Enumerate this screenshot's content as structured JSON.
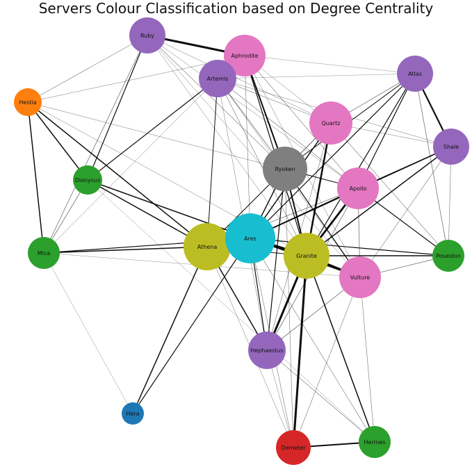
{
  "title": "Servers Colour Classification based on Degree Centrality",
  "colors": {
    "purple": "#9467bd",
    "orange": "#ff7f0e",
    "green": "#2ca02c",
    "pink": "#e377c2",
    "gray": "#7f7f7f",
    "olive": "#bcbd22",
    "cyan": "#17becf",
    "blue": "#1f77b4",
    "red": "#d62728"
  },
  "nodes": [
    {
      "id": "ruby",
      "label": "Ruby",
      "color": "#9467bd"
    },
    {
      "id": "aphrodite",
      "label": "Aphrodite",
      "color": "#e377c2"
    },
    {
      "id": "artemis",
      "label": "Artemis",
      "color": "#9467bd"
    },
    {
      "id": "atlas",
      "label": "Atlas",
      "color": "#9467bd"
    },
    {
      "id": "hestia",
      "label": "Hestia",
      "color": "#ff7f0e"
    },
    {
      "id": "quartz",
      "label": "Quartz",
      "color": "#e377c2"
    },
    {
      "id": "shale",
      "label": "Shale",
      "color": "#9467bd"
    },
    {
      "id": "ryoken",
      "label": "Ryoken",
      "color": "#7f7f7f"
    },
    {
      "id": "dionysus",
      "label": "Dionysus",
      "color": "#2ca02c"
    },
    {
      "id": "apollo",
      "label": "Apollo",
      "color": "#e377c2"
    },
    {
      "id": "mica",
      "label": "Mica",
      "color": "#2ca02c"
    },
    {
      "id": "athena",
      "label": "Athena",
      "color": "#bcbd22"
    },
    {
      "id": "ares",
      "label": "Ares",
      "color": "#17becf"
    },
    {
      "id": "granite",
      "label": "Granite",
      "color": "#bcbd22"
    },
    {
      "id": "poseidon",
      "label": "Poseidon",
      "color": "#2ca02c"
    },
    {
      "id": "vulture",
      "label": "Vulture",
      "color": "#e377c2"
    },
    {
      "id": "hephaestus",
      "label": "Hephaestus",
      "color": "#9467bd"
    },
    {
      "id": "hera",
      "label": "Hera",
      "color": "#1f77b4"
    },
    {
      "id": "demeter",
      "label": "Demeter",
      "color": "#d62728"
    },
    {
      "id": "hermes",
      "label": "Hermes",
      "color": "#2ca02c"
    }
  ],
  "edges": [
    [
      "ruby",
      "aphrodite",
      3
    ],
    [
      "ruby",
      "hestia",
      0.6
    ],
    [
      "ruby",
      "dionysus",
      1.2
    ],
    [
      "ruby",
      "mica",
      0.8
    ],
    [
      "ruby",
      "ryoken",
      0.6
    ],
    [
      "ruby",
      "quartz",
      0.5
    ],
    [
      "ruby",
      "apollo",
      0.5
    ],
    [
      "ruby",
      "vulture",
      0.5
    ],
    [
      "ruby",
      "granite",
      0.5
    ],
    [
      "aphrodite",
      "ryoken",
      2
    ],
    [
      "aphrodite",
      "granite",
      1.2
    ],
    [
      "aphrodite",
      "apollo",
      0.6
    ],
    [
      "aphrodite",
      "vulture",
      0.5
    ],
    [
      "aphrodite",
      "quartz",
      0.5
    ],
    [
      "aphrodite",
      "hestia",
      0.5
    ],
    [
      "aphrodite",
      "atlas",
      0.4
    ],
    [
      "aphrodite",
      "ares",
      0.6
    ],
    [
      "artemis",
      "dionysus",
      1.2
    ],
    [
      "artemis",
      "ryoken",
      0.8
    ],
    [
      "artemis",
      "quartz",
      0.6
    ],
    [
      "artemis",
      "apollo",
      0.6
    ],
    [
      "artemis",
      "shale",
      0.5
    ],
    [
      "artemis",
      "athena",
      1
    ],
    [
      "artemis",
      "granite",
      0.6
    ],
    [
      "artemis",
      "vulture",
      0.5
    ],
    [
      "artemis",
      "mica",
      0.5
    ],
    [
      "artemis",
      "hephaestus",
      0.5
    ],
    [
      "atlas",
      "shale",
      2.2
    ],
    [
      "atlas",
      "quartz",
      0.8
    ],
    [
      "atlas",
      "ryoken",
      1
    ],
    [
      "atlas",
      "apollo",
      1.2
    ],
    [
      "atlas",
      "ares",
      1.2
    ],
    [
      "atlas",
      "granite",
      1.2
    ],
    [
      "atlas",
      "poseidon",
      0.8
    ],
    [
      "atlas",
      "artemis",
      0.4
    ],
    [
      "hestia",
      "dionysus",
      1.5
    ],
    [
      "hestia",
      "mica",
      1.5
    ],
    [
      "hestia",
      "athena",
      1.5
    ],
    [
      "hestia",
      "granite",
      0.5
    ],
    [
      "hestia",
      "apollo",
      0.5
    ],
    [
      "quartz",
      "ryoken",
      0.8
    ],
    [
      "quartz",
      "granite",
      2.5
    ],
    [
      "quartz",
      "ares",
      1.5
    ],
    [
      "quartz",
      "hephaestus",
      0.6
    ],
    [
      "quartz",
      "poseidon",
      0.6
    ],
    [
      "quartz",
      "shale",
      0.5
    ],
    [
      "quartz",
      "athena",
      0.6
    ],
    [
      "shale",
      "apollo",
      1
    ],
    [
      "shale",
      "granite",
      1.5
    ],
    [
      "shale",
      "poseidon",
      0.6
    ],
    [
      "shale",
      "ares",
      1.5
    ],
    [
      "shale",
      "vulture",
      0.6
    ],
    [
      "ryoken",
      "apollo",
      1
    ],
    [
      "ryoken",
      "granite",
      2
    ],
    [
      "ryoken",
      "ares",
      1.5
    ],
    [
      "ryoken",
      "athena",
      1
    ],
    [
      "ryoken",
      "hephaestus",
      1.2
    ],
    [
      "ryoken",
      "vulture",
      1.2
    ],
    [
      "ryoken",
      "demeter",
      0.6
    ],
    [
      "dionysus",
      "athena",
      1.5
    ],
    [
      "dionysus",
      "mica",
      0.8
    ],
    [
      "dionysus",
      "ares",
      1.5
    ],
    [
      "dionysus",
      "hermes",
      0.4
    ],
    [
      "apollo",
      "granite",
      2.8
    ],
    [
      "apollo",
      "ares",
      1.5
    ],
    [
      "apollo",
      "poseidon",
      1.2
    ],
    [
      "apollo",
      "hephaestus",
      0.8
    ],
    [
      "apollo",
      "vulture",
      0.8
    ],
    [
      "apollo",
      "athena",
      0.8
    ],
    [
      "mica",
      "athena",
      1.5
    ],
    [
      "mica",
      "ares",
      1.2
    ],
    [
      "mica",
      "hera",
      0.4
    ],
    [
      "mica",
      "vulture",
      0.4
    ],
    [
      "athena",
      "ares",
      1.5
    ],
    [
      "athena",
      "hephaestus",
      1.5
    ],
    [
      "athena",
      "hera",
      1.5
    ],
    [
      "athena",
      "granite",
      1
    ],
    [
      "athena",
      "demeter",
      0.5
    ],
    [
      "ares",
      "granite",
      4
    ],
    [
      "ares",
      "vulture",
      1.5
    ],
    [
      "ares",
      "hephaestus",
      1.2
    ],
    [
      "ares",
      "hera",
      1.2
    ],
    [
      "ares",
      "poseidon",
      1.2
    ],
    [
      "ares",
      "demeter",
      0.6
    ],
    [
      "ares",
      "hermes",
      0.6
    ],
    [
      "granite",
      "vulture",
      3
    ],
    [
      "granite",
      "poseidon",
      1.5
    ],
    [
      "granite",
      "hephaestus",
      3
    ],
    [
      "granite",
      "demeter",
      3
    ],
    [
      "granite",
      "hermes",
      1.5
    ],
    [
      "vulture",
      "poseidon",
      0.8
    ],
    [
      "vulture",
      "hephaestus",
      0.8
    ],
    [
      "vulture",
      "demeter",
      0.6
    ],
    [
      "vulture",
      "hermes",
      0.6
    ],
    [
      "hephaestus",
      "demeter",
      0.5
    ],
    [
      "hephaestus",
      "hermes",
      0.6
    ],
    [
      "demeter",
      "hermes",
      2
    ]
  ]
}
